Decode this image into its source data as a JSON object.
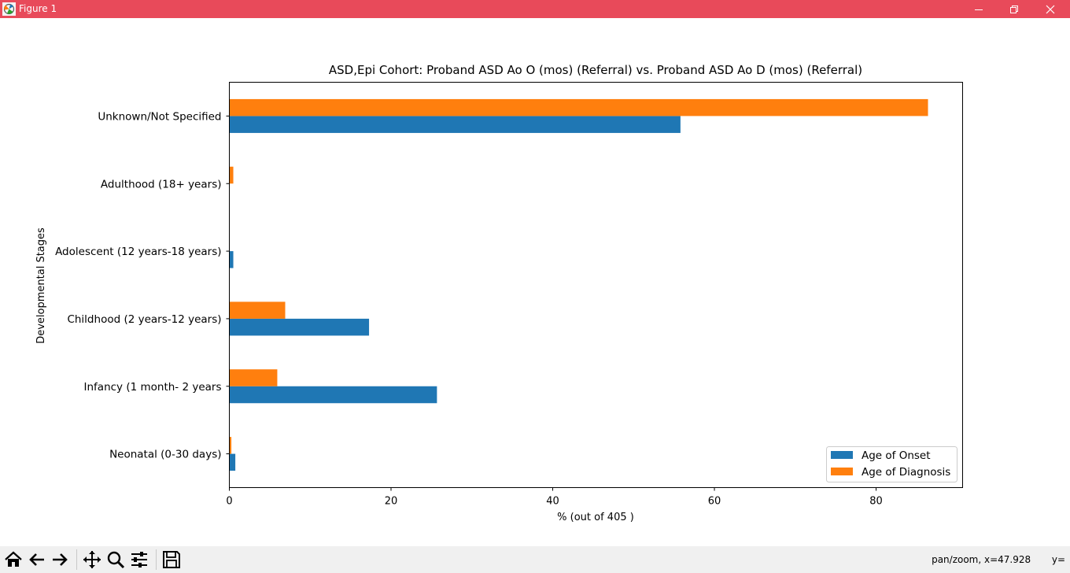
{
  "window": {
    "title": "Figure 1"
  },
  "chart_data": {
    "type": "bar",
    "orientation": "horizontal",
    "title": "ASD,Epi Cohort: Proband ASD Ao O (mos) (Referral) vs. Proband ASD Ao D (mos) (Referral)",
    "xlabel": "% (out of 405 )",
    "ylabel": "Developmental Stages",
    "categories": [
      "Neonatal (0-30 days)",
      "Infancy (1 month- 2 years",
      "Childhood (2 years-12 years)",
      "Adolescent (12 years-18 years)",
      "Adulthood (18+ years)",
      "Unknown/Not Specified"
    ],
    "series": [
      {
        "name": "Age of Onset",
        "color": "#1f77b4",
        "values": [
          0.74,
          25.68,
          17.28,
          0.49,
          0.0,
          55.8
        ]
      },
      {
        "name": "Age of Diagnosis",
        "color": "#ff7f0e",
        "values": [
          0.25,
          5.93,
          6.91,
          0.0,
          0.49,
          86.42
        ]
      }
    ],
    "xlim": [
      0,
      90.7
    ],
    "xticks": [
      0,
      20,
      40,
      60,
      80
    ],
    "grid": false,
    "legend_position": "lower-right"
  },
  "toolbar": {
    "status": "pan/zoom, x=47.928       y="
  }
}
